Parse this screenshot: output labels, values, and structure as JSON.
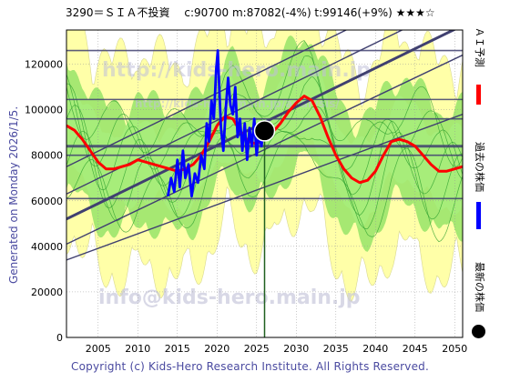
{
  "title": "3290＝ＳＩＡ不投資　 c:90700  m:87082(-4%)  t:99146(+9%)  ★★★☆",
  "side_text": "Generated on Monday 2026/1/5.",
  "copyright": "Copyright (c) Kids-Hero Research Institute. All Rights Reserved.",
  "watermarks": {
    "url_top": "http://kids-hero.main.jp",
    "url_mid": "http://kids-hero.main.jp/analysis/",
    "email": "info@kids-hero.main.jp"
  },
  "legend": {
    "forecast_label": "ＡＩ予測",
    "past_label": "過去の株価",
    "latest_label": "最新の株価",
    "forecast_color": "#ff0000",
    "past_color": "#0000ff",
    "latest_color": "#000000"
  },
  "colors": {
    "band_yellow": "#ffffa8",
    "band_green": "#88e060",
    "green_line": "#30a030",
    "channel": "#404070",
    "axis_text": "#000000"
  },
  "chart_data": {
    "type": "line",
    "xlim": [
      2001,
      2051
    ],
    "ylim": [
      0,
      135000
    ],
    "x_ticks": [
      2005,
      2010,
      2015,
      2020,
      2025,
      2030,
      2035,
      2040,
      2045,
      2050
    ],
    "y_ticks": [
      0,
      20000,
      40000,
      60000,
      80000,
      100000,
      120000
    ],
    "horizontal_levels": [
      126000,
      104500,
      96000,
      84000,
      80000,
      61000
    ],
    "channel_lines": [
      {
        "from": [
          2001,
          52000
        ],
        "to": [
          2051,
          137000
        ],
        "weight": "heavy"
      },
      {
        "from": [
          2001,
          41000
        ],
        "to": [
          2051,
          124000
        ],
        "weight": "light"
      },
      {
        "from": [
          2001,
          63000
        ],
        "to": [
          2051,
          148000
        ],
        "weight": "light"
      },
      {
        "from": [
          2001,
          34000
        ],
        "to": [
          2051,
          98000
        ],
        "weight": "light"
      },
      {
        "from": [
          2001,
          75000
        ],
        "to": [
          2051,
          160000
        ],
        "weight": "light"
      }
    ],
    "latest_point": {
      "x": 2026.0,
      "y": 90700
    },
    "current_year": 2026.0,
    "series": [
      {
        "name": "ＡＩ予測",
        "x": [
          2001,
          2002,
          2003,
          2004,
          2005,
          2006,
          2007,
          2008,
          2009,
          2010,
          2011,
          2012,
          2013,
          2014,
          2015,
          2016,
          2017,
          2018,
          2019,
          2020,
          2021,
          2022,
          2023,
          2024,
          2025,
          2026,
          2027,
          2028,
          2029,
          2030,
          2031,
          2032,
          2033,
          2034,
          2035,
          2036,
          2037,
          2038,
          2039,
          2040,
          2041,
          2042,
          2043,
          2044,
          2045,
          2046,
          2047,
          2048,
          2049,
          2050,
          2051
        ],
        "y": [
          93000,
          91000,
          87000,
          82000,
          77000,
          74000,
          74000,
          75000,
          76000,
          78000,
          77000,
          76000,
          75000,
          74000,
          73000,
          74000,
          76000,
          80000,
          86000,
          93000,
          97000,
          96000,
          90000,
          86000,
          85000,
          87000,
          90000,
          94000,
          99000,
          103000,
          106000,
          104000,
          97000,
          88000,
          80000,
          74000,
          70000,
          68000,
          69000,
          73000,
          80000,
          86000,
          87000,
          86000,
          84000,
          80000,
          76000,
          73000,
          73000,
          74000,
          75000
        ]
      },
      {
        "name": "過去の株価",
        "x": [
          2013.8,
          2014.2,
          2014.6,
          2015.0,
          2015.3,
          2015.7,
          2016.0,
          2016.4,
          2016.8,
          2017.2,
          2017.6,
          2018.0,
          2018.4,
          2018.7,
          2019.0,
          2019.3,
          2019.6,
          2019.9,
          2020.1,
          2020.3,
          2020.5,
          2020.8,
          2021.1,
          2021.4,
          2021.7,
          2022.0,
          2022.3,
          2022.6,
          2022.9,
          2023.2,
          2023.5,
          2023.8,
          2024.1,
          2024.4,
          2024.7,
          2025.0,
          2025.3,
          2025.6,
          2025.9
        ],
        "y": [
          62000,
          70000,
          64000,
          78000,
          66000,
          82000,
          70000,
          76000,
          62000,
          72000,
          68000,
          80000,
          74000,
          94000,
          86000,
          104000,
          96000,
          118000,
          126000,
          108000,
          92000,
          82000,
          100000,
          114000,
          102000,
          98000,
          110000,
          88000,
          96000,
          82000,
          94000,
          78000,
          92000,
          84000,
          96000,
          80000,
          90000,
          84000,
          90700
        ]
      }
    ]
  }
}
